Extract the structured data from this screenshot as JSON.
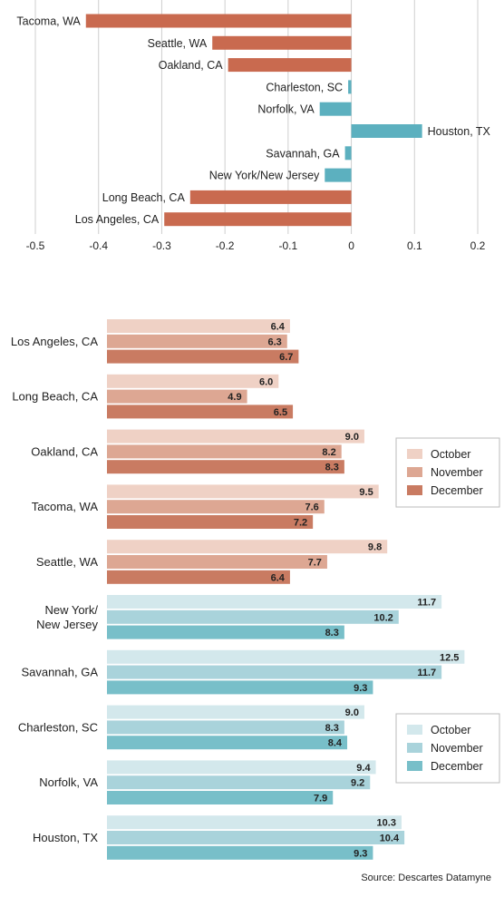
{
  "chart_data": [
    {
      "type": "bar",
      "orientation": "horizontal",
      "title": "",
      "xlabel": "",
      "ylabel": "",
      "xlim": [
        -0.5,
        0.2
      ],
      "xticks": [
        "-0.5",
        "-0.4",
        "-0.3",
        "-0.2",
        "-0.1",
        "0",
        "0.1",
        "0.2"
      ],
      "grid": true,
      "categories": [
        "Tacoma, WA",
        "Seattle, WA",
        "Oakland, CA",
        "Charleston, SC",
        "Norfolk, VA",
        "Houston, TX",
        "Savannah, GA",
        "New York/New Jersey",
        "Long Beach, CA",
        "Los Angeles, CA"
      ],
      "values": [
        -0.42,
        -0.22,
        -0.195,
        -0.005,
        -0.05,
        0.112,
        -0.01,
        -0.042,
        -0.255,
        -0.296
      ],
      "colors": {
        "negative_west": "#c96a4f",
        "east": "#5cb0bf"
      },
      "group": [
        "west",
        "west",
        "west",
        "east",
        "east",
        "east",
        "east",
        "east",
        "west",
        "west"
      ]
    },
    {
      "type": "bar",
      "orientation": "horizontal",
      "title": "",
      "xlabel": "",
      "ylabel": "",
      "xlim": [
        0,
        13.5
      ],
      "grid": false,
      "categories": [
        "Los Angeles, CA",
        "Long Beach, CA",
        "Oakland, CA",
        "Tacoma, WA",
        "Seattle, WA",
        "New York/\nNew Jersey",
        "Savannah, GA",
        "Charleston, SC",
        "Norfolk, VA",
        "Houston, TX"
      ],
      "series": [
        {
          "name": "October",
          "values": [
            6.4,
            6.0,
            9.0,
            9.5,
            9.8,
            11.7,
            12.5,
            9.0,
            9.4,
            10.3
          ]
        },
        {
          "name": "November",
          "values": [
            6.3,
            4.9,
            8.2,
            7.6,
            7.7,
            10.2,
            11.7,
            8.3,
            9.2,
            10.4
          ]
        },
        {
          "name": "December",
          "values": [
            6.7,
            6.5,
            8.3,
            7.2,
            6.4,
            8.3,
            9.3,
            8.4,
            7.9,
            9.3
          ]
        }
      ],
      "legends": [
        {
          "placement": "right-upper",
          "entries": [
            "October",
            "November",
            "December"
          ],
          "colors": [
            "#efd1c5",
            "#dda793",
            "#c97b62"
          ]
        },
        {
          "placement": "right-lower",
          "entries": [
            "October",
            "November",
            "December"
          ],
          "colors": [
            "#d3e8ec",
            "#a9d3db",
            "#78bfc9"
          ]
        }
      ],
      "colors": {
        "west": [
          "#efd1c5",
          "#dda793",
          "#c97b62"
        ],
        "east": [
          "#d3e8ec",
          "#a9d3db",
          "#78bfc9"
        ]
      },
      "group": [
        "west",
        "west",
        "west",
        "west",
        "west",
        "east",
        "east",
        "east",
        "east",
        "east"
      ]
    }
  ],
  "source": "Source: Descartes Datamyne"
}
